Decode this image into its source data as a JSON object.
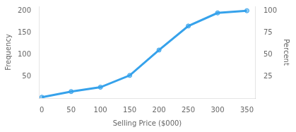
{
  "chart_data": {
    "type": "line",
    "x": [
      0,
      50,
      100,
      150,
      200,
      250,
      300,
      350
    ],
    "values": [
      2,
      15,
      25,
      52,
      110,
      165,
      195,
      200
    ],
    "marker": "circle",
    "xlabel": "Selling Price ($000)",
    "ylabel": "Frequency",
    "y2label": "Percent",
    "xlim": [
      -5,
      365
    ],
    "ylim": [
      0,
      210
    ],
    "y2lim": [
      0,
      105
    ],
    "xticks": [
      0,
      50,
      100,
      150,
      200,
      250,
      300,
      350
    ],
    "yticks": [
      50,
      100,
      150,
      200
    ],
    "y2ticks": [
      25,
      50,
      75,
      100
    ],
    "grid": false
  }
}
